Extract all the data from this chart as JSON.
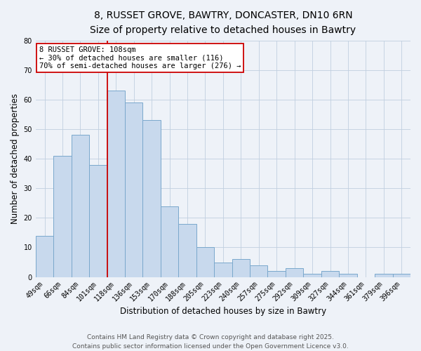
{
  "title1": "8, RUSSET GROVE, BAWTRY, DONCASTER, DN10 6RN",
  "title2": "Size of property relative to detached houses in Bawtry",
  "xlabel": "Distribution of detached houses by size in Bawtry",
  "ylabel": "Number of detached properties",
  "bar_labels": [
    "49sqm",
    "66sqm",
    "84sqm",
    "101sqm",
    "118sqm",
    "136sqm",
    "153sqm",
    "170sqm",
    "188sqm",
    "205sqm",
    "223sqm",
    "240sqm",
    "257sqm",
    "275sqm",
    "292sqm",
    "309sqm",
    "327sqm",
    "344sqm",
    "361sqm",
    "379sqm",
    "396sqm"
  ],
  "bar_values": [
    14,
    41,
    48,
    38,
    63,
    59,
    53,
    24,
    18,
    10,
    5,
    6,
    4,
    2,
    3,
    1,
    2,
    1,
    0,
    1,
    1
  ],
  "bar_color": "#c8d9ed",
  "bar_edge_color": "#7aa8cc",
  "background_color": "#eef2f8",
  "grid_color": "#c0cfe0",
  "vline_x": 3.5,
  "vline_color": "#cc0000",
  "annotation_line1": "8 RUSSET GROVE: 108sqm",
  "annotation_line2": "← 30% of detached houses are smaller (116)",
  "annotation_line3": "70% of semi-detached houses are larger (276) →",
  "annotation_box_color": "#ffffff",
  "annotation_box_edge": "#cc0000",
  "ylim": [
    0,
    80
  ],
  "yticks": [
    0,
    10,
    20,
    30,
    40,
    50,
    60,
    70,
    80
  ],
  "footer1": "Contains HM Land Registry data © Crown copyright and database right 2025.",
  "footer2": "Contains public sector information licensed under the Open Government Licence v3.0.",
  "title_fontsize": 10,
  "subtitle_fontsize": 9,
  "tick_fontsize": 7,
  "ylabel_fontsize": 8.5,
  "xlabel_fontsize": 8.5,
  "footer_fontsize": 6.5,
  "annot_fontsize": 7.5
}
